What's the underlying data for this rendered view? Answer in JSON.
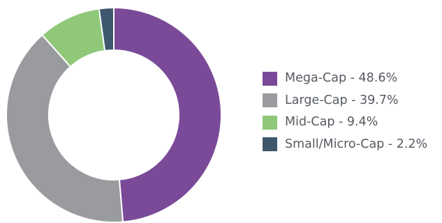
{
  "chart_data": {
    "type": "pie",
    "donut": true,
    "title": "",
    "legend_position": "right",
    "slices": [
      {
        "label": "Mega-Cap - 48.6%",
        "value": 48.6,
        "color": "#7a4a98"
      },
      {
        "label": "Large-Cap - 39.7%",
        "value": 39.7,
        "color": "#9a9b9e"
      },
      {
        "label": "Mid-Cap - 9.4%",
        "value": 9.4,
        "color": "#8fc879"
      },
      {
        "label": "Small/Micro-Cap - 2.2%",
        "value": 2.2,
        "color": "#3e576c"
      }
    ]
  }
}
